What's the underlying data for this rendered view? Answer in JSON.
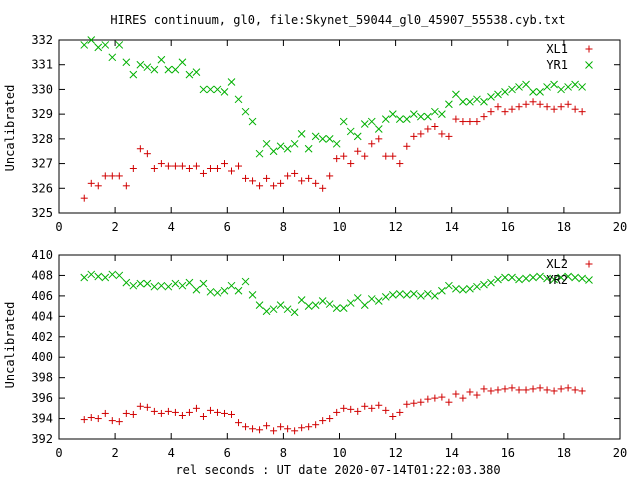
{
  "chart_data": {
    "title": "HIRES continuum, gl0, file:Skynet_59044_gl0_45907_55538.cyb.txt",
    "xlabel": "rel seconds : UT date 2020-07-14T01:22:03.380",
    "colors": {
      "red": "#d00000",
      "green": "#00b000"
    },
    "panels": [
      {
        "type": "scatter",
        "ylabel": "Uncalibrated",
        "xlim": [
          0,
          20
        ],
        "ylim": [
          325,
          332
        ],
        "xticks": [
          "0",
          "2",
          "4",
          "6",
          "8",
          "10",
          "12",
          "14",
          "16",
          "18",
          "20"
        ],
        "yticks": [
          "325",
          "326",
          "327",
          "328",
          "329",
          "330",
          "331",
          "332"
        ],
        "series": [
          {
            "name": "XL1",
            "marker": "plus",
            "color": "#d00000",
            "x": [
              0.9,
              1.15,
              1.4,
              1.65,
              1.9,
              2.15,
              2.4,
              2.65,
              2.9,
              3.15,
              3.4,
              3.65,
              3.9,
              4.15,
              4.4,
              4.65,
              4.9,
              5.15,
              5.4,
              5.65,
              5.9,
              6.15,
              6.4,
              6.65,
              6.9,
              7.15,
              7.4,
              7.65,
              7.9,
              8.15,
              8.4,
              8.65,
              8.9,
              9.15,
              9.4,
              9.65,
              9.9,
              10.15,
              10.4,
              10.65,
              10.9,
              11.15,
              11.4,
              11.65,
              11.9,
              12.15,
              12.4,
              12.65,
              12.9,
              13.15,
              13.4,
              13.65,
              13.9,
              14.15,
              14.4,
              14.65,
              14.9,
              15.15,
              15.4,
              15.65,
              15.9,
              16.15,
              16.4,
              16.65,
              16.9,
              17.15,
              17.4,
              17.65,
              17.9,
              18.15,
              18.4,
              18.65
            ],
            "y": [
              325.6,
              326.2,
              326.1,
              326.5,
              326.5,
              326.5,
              326.1,
              326.8,
              327.6,
              327.4,
              326.8,
              327.0,
              326.9,
              326.9,
              326.9,
              326.8,
              326.9,
              326.6,
              326.8,
              326.8,
              327.0,
              326.7,
              326.9,
              326.4,
              326.3,
              326.1,
              326.4,
              326.1,
              326.2,
              326.5,
              326.6,
              326.3,
              326.4,
              326.2,
              326.0,
              326.5,
              327.2,
              327.3,
              327.0,
              327.5,
              327.3,
              327.8,
              328.0,
              327.3,
              327.3,
              327.0,
              327.7,
              328.1,
              328.2,
              328.4,
              328.5,
              328.2,
              328.1,
              328.8,
              328.7,
              328.7,
              328.7,
              328.9,
              329.1,
              329.3,
              329.1,
              329.2,
              329.3,
              329.4,
              329.5,
              329.4,
              329.3,
              329.2,
              329.3,
              329.4,
              329.2,
              329.1
            ]
          },
          {
            "name": "YR1",
            "marker": "cross",
            "color": "#00b000",
            "x": [
              0.9,
              1.15,
              1.4,
              1.65,
              1.9,
              2.15,
              2.4,
              2.65,
              2.9,
              3.15,
              3.4,
              3.65,
              3.9,
              4.15,
              4.4,
              4.65,
              4.9,
              5.15,
              5.4,
              5.65,
              5.9,
              6.15,
              6.4,
              6.65,
              6.9,
              7.15,
              7.4,
              7.65,
              7.9,
              8.15,
              8.4,
              8.65,
              8.9,
              9.15,
              9.4,
              9.65,
              9.9,
              10.15,
              10.4,
              10.65,
              10.9,
              11.15,
              11.4,
              11.65,
              11.9,
              12.15,
              12.4,
              12.65,
              12.9,
              13.15,
              13.4,
              13.65,
              13.9,
              14.15,
              14.4,
              14.65,
              14.9,
              15.15,
              15.4,
              15.65,
              15.9,
              16.15,
              16.4,
              16.65,
              16.9,
              17.15,
              17.4,
              17.65,
              17.9,
              18.15,
              18.4,
              18.65
            ],
            "y": [
              331.8,
              332.0,
              331.7,
              331.8,
              331.3,
              331.8,
              331.1,
              330.6,
              331.0,
              330.9,
              330.8,
              331.2,
              330.8,
              330.8,
              331.1,
              330.6,
              330.7,
              330.0,
              330.0,
              330.0,
              329.9,
              330.3,
              329.6,
              329.1,
              328.7,
              327.4,
              327.8,
              327.5,
              327.7,
              327.6,
              327.8,
              328.2,
              327.6,
              328.1,
              328.0,
              328.0,
              327.8,
              328.7,
              328.3,
              328.1,
              328.6,
              328.7,
              328.4,
              328.8,
              329.0,
              328.8,
              328.8,
              329.0,
              328.9,
              328.9,
              329.1,
              329.0,
              329.4,
              329.8,
              329.5,
              329.5,
              329.6,
              329.5,
              329.7,
              329.8,
              329.9,
              330.0,
              330.1,
              330.2,
              329.9,
              329.9,
              330.1,
              330.2,
              330.0,
              330.1,
              330.2,
              330.1
            ]
          }
        ]
      },
      {
        "type": "scatter",
        "ylabel": "Uncalibrated",
        "xlim": [
          0,
          20
        ],
        "ylim": [
          392,
          410
        ],
        "xticks": [
          "0",
          "2",
          "4",
          "6",
          "8",
          "10",
          "12",
          "14",
          "16",
          "18",
          "20"
        ],
        "yticks": [
          "392",
          "394",
          "396",
          "398",
          "400",
          "402",
          "404",
          "406",
          "408",
          "410"
        ],
        "series": [
          {
            "name": "XL2",
            "marker": "plus",
            "color": "#d00000",
            "x": [
              0.9,
              1.15,
              1.4,
              1.65,
              1.9,
              2.15,
              2.4,
              2.65,
              2.9,
              3.15,
              3.4,
              3.65,
              3.9,
              4.15,
              4.4,
              4.65,
              4.9,
              5.15,
              5.4,
              5.65,
              5.9,
              6.15,
              6.4,
              6.65,
              6.9,
              7.15,
              7.4,
              7.65,
              7.9,
              8.15,
              8.4,
              8.65,
              8.9,
              9.15,
              9.4,
              9.65,
              9.9,
              10.15,
              10.4,
              10.65,
              10.9,
              11.15,
              11.4,
              11.65,
              11.9,
              12.15,
              12.4,
              12.65,
              12.9,
              13.15,
              13.4,
              13.65,
              13.9,
              14.15,
              14.4,
              14.65,
              14.9,
              15.15,
              15.4,
              15.65,
              15.9,
              16.15,
              16.4,
              16.65,
              16.9,
              17.15,
              17.4,
              17.65,
              17.9,
              18.15,
              18.4,
              18.65
            ],
            "y": [
              393.9,
              394.1,
              394.0,
              394.5,
              393.8,
              393.7,
              394.5,
              394.4,
              395.2,
              395.1,
              394.7,
              394.5,
              394.7,
              394.6,
              394.3,
              394.6,
              395.0,
              394.2,
              394.8,
              394.6,
              394.5,
              394.4,
              393.6,
              393.2,
              393.0,
              392.9,
              393.3,
              392.8,
              393.2,
              393.0,
              392.8,
              393.1,
              393.2,
              393.4,
              393.8,
              394.0,
              394.6,
              395.0,
              394.9,
              394.7,
              395.2,
              395.0,
              395.3,
              394.8,
              394.2,
              394.6,
              395.4,
              395.5,
              395.6,
              395.9,
              396.0,
              396.1,
              395.6,
              396.4,
              396.0,
              396.6,
              396.3,
              396.9,
              396.7,
              396.8,
              396.9,
              397.0,
              396.8,
              396.8,
              396.9,
              397.0,
              396.8,
              396.7,
              396.9,
              397.0,
              396.8,
              396.7
            ]
          },
          {
            "name": "YR2",
            "marker": "cross",
            "color": "#00b000",
            "x": [
              0.9,
              1.15,
              1.4,
              1.65,
              1.9,
              2.15,
              2.4,
              2.65,
              2.9,
              3.15,
              3.4,
              3.65,
              3.9,
              4.15,
              4.4,
              4.65,
              4.9,
              5.15,
              5.4,
              5.65,
              5.9,
              6.15,
              6.4,
              6.65,
              6.9,
              7.15,
              7.4,
              7.65,
              7.9,
              8.15,
              8.4,
              8.65,
              8.9,
              9.15,
              9.4,
              9.65,
              9.9,
              10.15,
              10.4,
              10.65,
              10.9,
              11.15,
              11.4,
              11.65,
              11.9,
              12.15,
              12.4,
              12.65,
              12.9,
              13.15,
              13.4,
              13.65,
              13.9,
              14.15,
              14.4,
              14.65,
              14.9,
              15.15,
              15.4,
              15.65,
              15.9,
              16.15,
              16.4,
              16.65,
              16.9,
              17.15,
              17.4,
              17.65,
              17.9,
              18.15,
              18.4,
              18.65
            ],
            "y": [
              407.8,
              408.1,
              407.9,
              407.8,
              408.1,
              408.0,
              407.3,
              407.0,
              407.2,
              407.2,
              406.9,
              407.0,
              406.9,
              407.2,
              407.0,
              407.3,
              406.6,
              407.2,
              406.4,
              406.3,
              406.5,
              407.0,
              406.5,
              407.4,
              406.1,
              405.1,
              404.5,
              404.7,
              405.1,
              404.7,
              404.4,
              405.6,
              405.0,
              405.1,
              405.5,
              405.2,
              404.8,
              404.8,
              405.3,
              405.8,
              405.1,
              405.7,
              405.5,
              405.9,
              406.1,
              406.2,
              406.1,
              406.2,
              406.0,
              406.2,
              406.0,
              406.5,
              407.0,
              406.7,
              406.6,
              406.7,
              406.9,
              407.1,
              407.3,
              407.6,
              407.8,
              407.8,
              407.6,
              407.7,
              407.8,
              407.9,
              407.7,
              407.6,
              407.8,
              407.9,
              407.8,
              407.7
            ]
          }
        ]
      }
    ]
  }
}
